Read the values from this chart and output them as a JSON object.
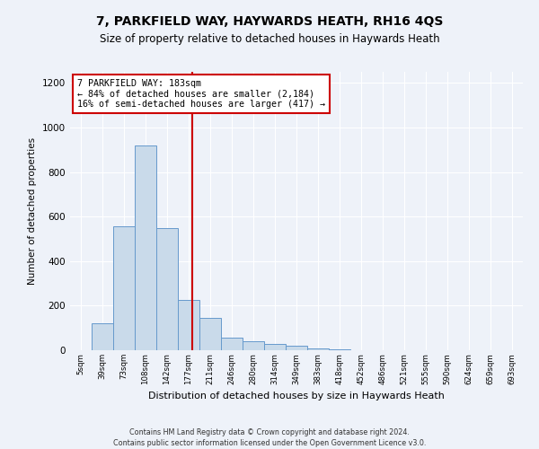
{
  "title": "7, PARKFIELD WAY, HAYWARDS HEATH, RH16 4QS",
  "subtitle": "Size of property relative to detached houses in Haywards Heath",
  "xlabel": "Distribution of detached houses by size in Haywards Heath",
  "ylabel": "Number of detached properties",
  "bin_labels": [
    "5sqm",
    "39sqm",
    "73sqm",
    "108sqm",
    "142sqm",
    "177sqm",
    "211sqm",
    "246sqm",
    "280sqm",
    "314sqm",
    "349sqm",
    "383sqm",
    "418sqm",
    "452sqm",
    "486sqm",
    "521sqm",
    "555sqm",
    "590sqm",
    "624sqm",
    "659sqm",
    "693sqm"
  ],
  "bar_heights": [
    0,
    120,
    555,
    920,
    550,
    225,
    145,
    55,
    40,
    30,
    20,
    10,
    5,
    0,
    0,
    0,
    0,
    0,
    0,
    0,
    0
  ],
  "bar_color": "#c9daea",
  "bar_edge_color": "#6699cc",
  "annotation_title": "7 PARKFIELD WAY: 183sqm",
  "annotation_line1": "← 84% of detached houses are smaller (2,184)",
  "annotation_line2": "16% of semi-detached houses are larger (417) →",
  "annotation_box_color": "#cc0000",
  "vline_color": "#cc0000",
  "ylim": [
    0,
    1250
  ],
  "yticks": [
    0,
    200,
    400,
    600,
    800,
    1000,
    1200
  ],
  "footer1": "Contains HM Land Registry data © Crown copyright and database right 2024.",
  "footer2": "Contains public sector information licensed under the Open Government Licence v3.0.",
  "background_color": "#eef2f9",
  "plot_bg_color": "#eef2f9",
  "grid_color": "#ffffff",
  "title_fontsize": 10,
  "subtitle_fontsize": 8.5
}
